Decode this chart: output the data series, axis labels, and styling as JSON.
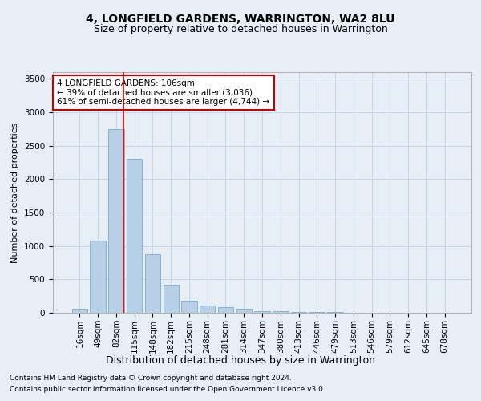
{
  "title": "4, LONGFIELD GARDENS, WARRINGTON, WA2 8LU",
  "subtitle": "Size of property relative to detached houses in Warrington",
  "xlabel": "Distribution of detached houses by size in Warrington",
  "ylabel": "Number of detached properties",
  "footnote1": "Contains HM Land Registry data © Crown copyright and database right 2024.",
  "footnote2": "Contains public sector information licensed under the Open Government Licence v3.0.",
  "categories": [
    "16sqm",
    "49sqm",
    "82sqm",
    "115sqm",
    "148sqm",
    "182sqm",
    "215sqm",
    "248sqm",
    "281sqm",
    "314sqm",
    "347sqm",
    "380sqm",
    "413sqm",
    "446sqm",
    "479sqm",
    "513sqm",
    "546sqm",
    "579sqm",
    "612sqm",
    "645sqm",
    "678sqm"
  ],
  "values": [
    55,
    1080,
    2750,
    2300,
    880,
    420,
    175,
    110,
    80,
    55,
    30,
    20,
    15,
    10,
    8,
    5,
    3,
    2,
    1,
    1,
    1
  ],
  "bar_color": "#b8cfe8",
  "bar_edge_color": "#7aaad0",
  "grid_color": "#c8d4e8",
  "bg_color": "#e8eef6",
  "red_line_color": "#cc0000",
  "red_line_index": 2.42,
  "annotation_line1": "4 LONGFIELD GARDENS: 106sqm",
  "annotation_line2": "← 39% of detached houses are smaller (3,036)",
  "annotation_line3": "61% of semi-detached houses are larger (4,744) →",
  "box_facecolor": "#ffffff",
  "box_edgecolor": "#cc0000",
  "ylim": [
    0,
    3600
  ],
  "yticks": [
    0,
    500,
    1000,
    1500,
    2000,
    2500,
    3000,
    3500
  ],
  "title_fontsize": 10,
  "subtitle_fontsize": 9,
  "ylabel_fontsize": 8,
  "xlabel_fontsize": 9,
  "tick_fontsize": 7.5,
  "annot_fontsize": 7.5,
  "footnote_fontsize": 6.5
}
